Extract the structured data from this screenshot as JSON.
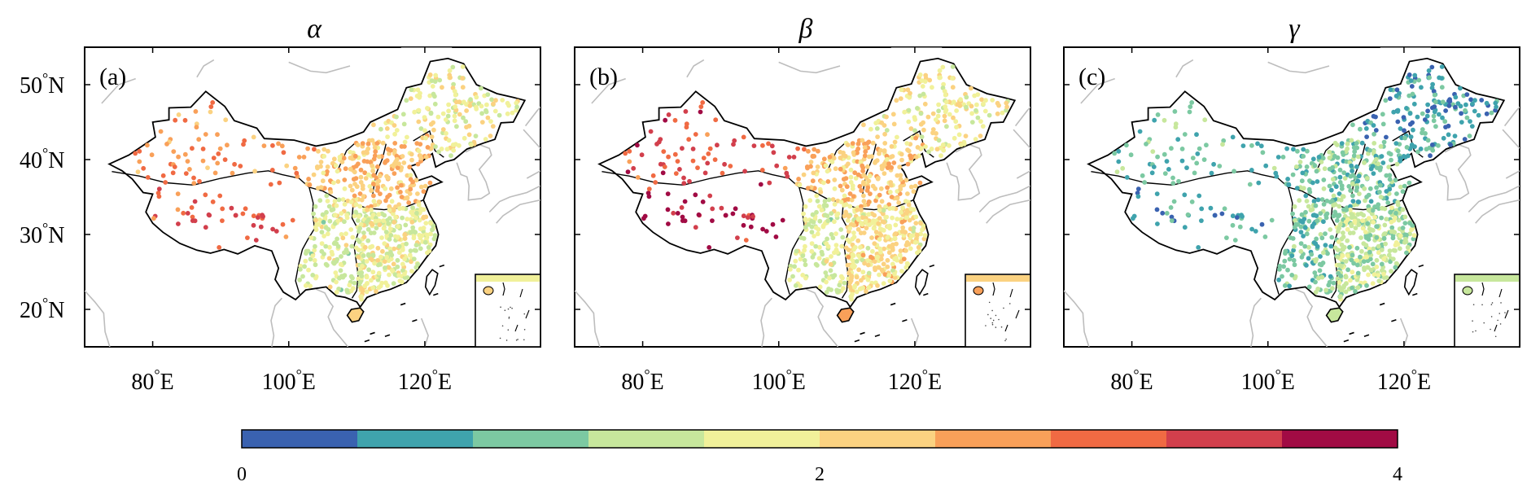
{
  "panels": [
    {
      "id": "a",
      "title": "α",
      "label": "(a)",
      "field": "alpha"
    },
    {
      "id": "b",
      "title": "β",
      "label": "(b)",
      "field": "beta"
    },
    {
      "id": "c",
      "title": "γ",
      "label": "(c)",
      "field": "gamma"
    }
  ],
  "axes": {
    "lon_range": [
      70,
      137
    ],
    "lat_range": [
      15,
      55
    ],
    "x_ticks": [
      {
        "value": 80,
        "deg": "80",
        "hemi": "E"
      },
      {
        "value": 100,
        "deg": "100",
        "hemi": "E"
      },
      {
        "value": 120,
        "deg": "120",
        "hemi": "E"
      }
    ],
    "y_ticks": [
      {
        "value": 50,
        "deg": "50",
        "hemi": "N"
      },
      {
        "value": 40,
        "deg": "40",
        "hemi": "N"
      },
      {
        "value": 30,
        "deg": "30",
        "hemi": "N"
      },
      {
        "value": 20,
        "deg": "20",
        "hemi": "N"
      }
    ]
  },
  "colorbar": {
    "min": 0,
    "max": 4,
    "ticks": [
      "0",
      "2",
      "4"
    ],
    "bins": [
      "#3a62b0",
      "#3fa3ad",
      "#7cc9a2",
      "#c7e79c",
      "#f1f19a",
      "#fbd281",
      "#f9a059",
      "#f06a43",
      "#d23f4c",
      "#a10b44"
    ]
  },
  "style": {
    "land_fill": "#ffffff",
    "border_color": "#000000",
    "neighbor_coast_color": "#bdbdbd"
  },
  "regional_means": {
    "alpha": {
      "northwest": 2.7,
      "tibet": 3.1,
      "north_china": 2.3,
      "northeast": 1.8,
      "southwest": 1.6,
      "southeast": 1.7,
      "hainan": 2.2
    },
    "beta": {
      "northwest": 3.2,
      "tibet": 3.6,
      "north_china": 2.3,
      "northeast": 1.9,
      "southwest": 1.6,
      "southeast": 2.0,
      "hainan": 2.4
    },
    "gamma": {
      "northwest": 0.9,
      "tibet": 0.7,
      "north_china": 1.0,
      "northeast": 0.6,
      "southwest": 1.0,
      "southeast": 1.4,
      "hainan": 1.2
    }
  }
}
